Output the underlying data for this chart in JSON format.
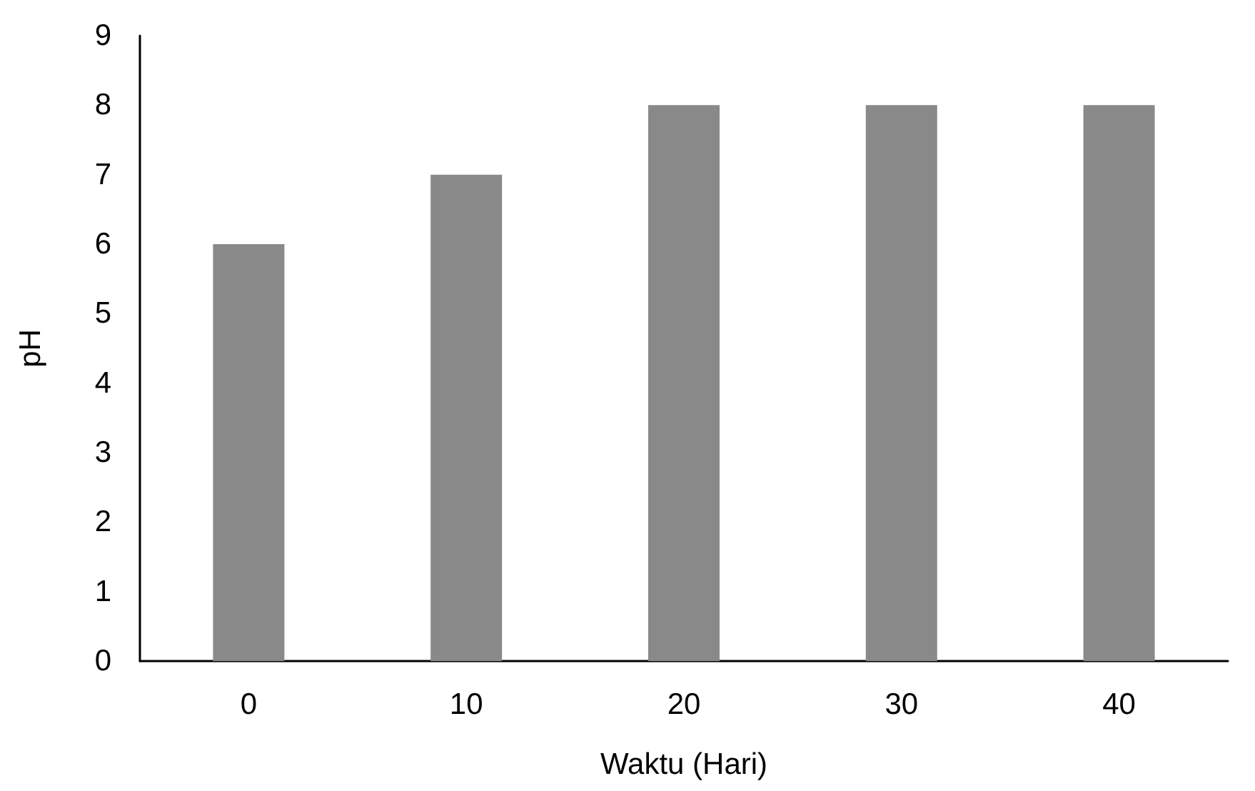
{
  "chart_data": {
    "type": "bar",
    "xlabel": "Waktu (Hari)",
    "ylabel": "pH",
    "categories": [
      "0",
      "10",
      "20",
      "30",
      "40"
    ],
    "values": [
      6,
      7,
      8,
      8,
      8
    ],
    "color": "#898989",
    "ylim": [
      0,
      9
    ],
    "yticks": [
      0,
      1,
      2,
      3,
      4,
      5,
      6,
      7,
      8,
      9
    ],
    "grid": false
  }
}
